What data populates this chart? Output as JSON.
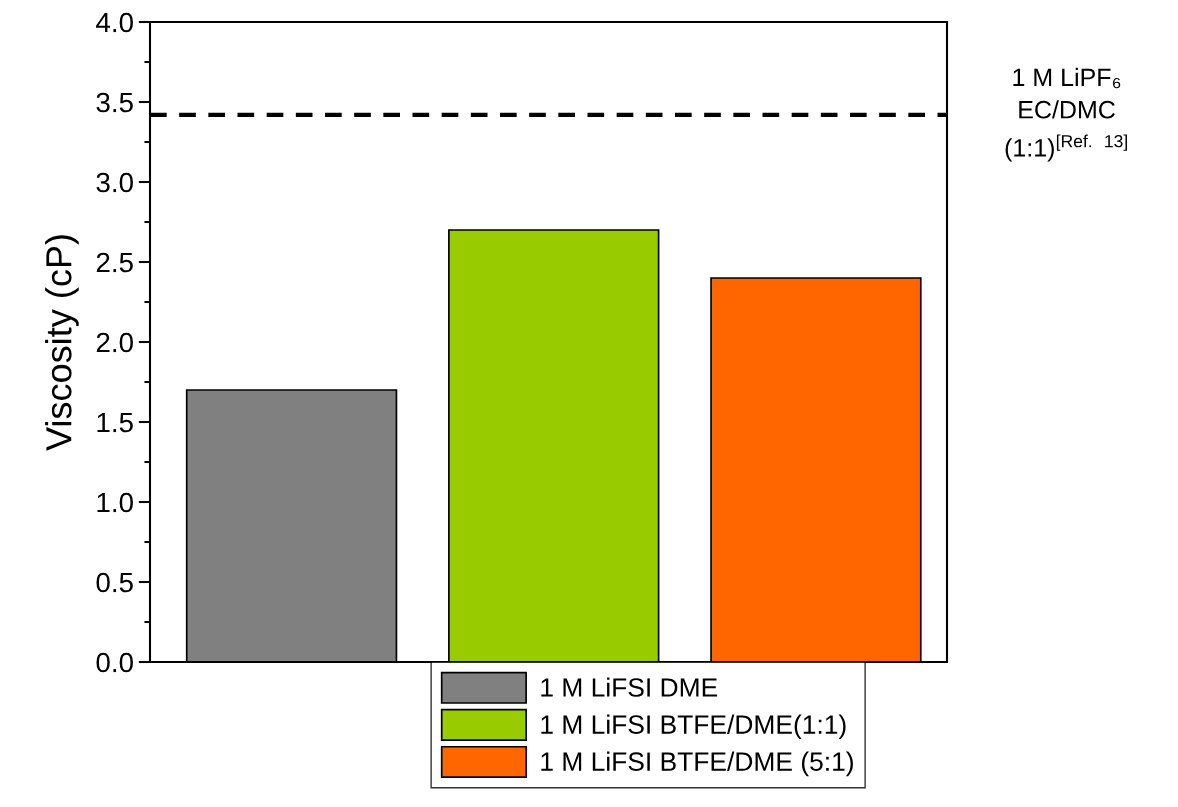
{
  "chart_data": {
    "type": "bar",
    "ylabel": "Viscosity (cP)",
    "categories": [
      null,
      null,
      null
    ],
    "series": [
      {
        "name": "1 M LiFSI DME",
        "color": "#808080",
        "values": [
          1.7,
          null,
          null
        ]
      },
      {
        "name": "1 M LiFSI BTFE/DME(1:1)",
        "color": "#99cc00",
        "values": [
          null,
          2.7,
          null
        ]
      },
      {
        "name": "1 M LiFSI BTFE/DME (5:1)",
        "color": "#ff6600",
        "values": [
          null,
          null,
          2.4
        ]
      }
    ],
    "ylim": [
      0,
      4
    ],
    "yticks": [
      {
        "value": 0,
        "label": "0.0"
      },
      0.5,
      {
        "value": 1,
        "label": "1.0"
      },
      1.5,
      {
        "value": 2,
        "label": "2.0"
      },
      2.5,
      {
        "value": 3,
        "label": "3.0"
      },
      3.5,
      {
        "value": 4,
        "label": "4.0"
      }
    ],
    "ref_lines": [
      {
        "axis": "y",
        "value": 3.42,
        "color": "#000000",
        "line_style": "dashed"
      }
    ],
    "annotations": [
      "1 M LiPF₆\nEC/DMC\n(1:1)$^{[Ref. 13]}$"
    ],
    "legend": "bottom",
    "tick_labels": "y",
    "grid": false
  }
}
